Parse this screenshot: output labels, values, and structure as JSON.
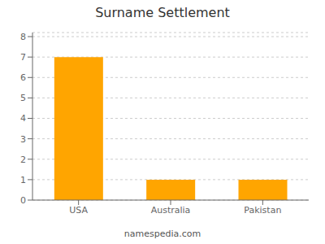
{
  "chart_data": {
    "type": "bar",
    "title": "Surname Settlement",
    "categories": [
      "USA",
      "Australia",
      "Pakistan"
    ],
    "values": [
      7,
      1,
      1
    ],
    "color": "#FFA500",
    "ylim": [
      0,
      8.2
    ],
    "yticks": [
      0,
      1,
      2,
      3,
      4,
      5,
      6,
      7,
      8
    ],
    "grid": true,
    "footer": "namespedia.com"
  }
}
